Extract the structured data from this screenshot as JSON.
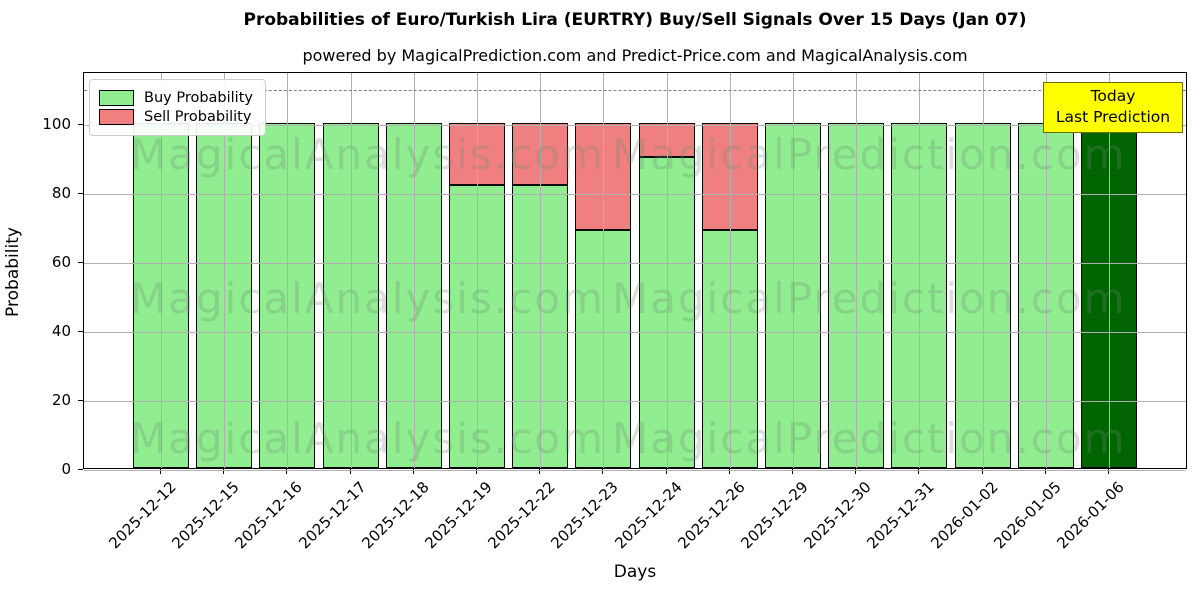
{
  "header": {
    "title": "Probabilities of Euro/Turkish Lira (EURTRY) Buy/Sell Signals Over 15 Days (Jan 07)",
    "subtitle": "powered by MagicalPrediction.com and Predict-Price.com and MagicalAnalysis.com"
  },
  "legend": {
    "items": [
      {
        "label": "Buy Probability",
        "color": "#90EE90"
      },
      {
        "label": "Sell Probability",
        "color": "#F08080"
      }
    ]
  },
  "annotation": {
    "line1": "Today",
    "line2": "Last Prediction",
    "bg_color": "#FFFF00"
  },
  "watermarks": {
    "left": "MagicalAnalysis.com",
    "right": "MagicalPrediction.com"
  },
  "colors": {
    "buy": "#90EE90",
    "sell": "#F08080",
    "today_bar": "#006400",
    "grid": "#b0b0b0",
    "dashed_line": "#808080",
    "bar_edge": "#0a0a0a",
    "annotation_bg": "#FFFF00"
  },
  "chart_data": {
    "type": "bar",
    "stacked": true,
    "title": "Probabilities of Euro/Turkish Lira (EURTRY) Buy/Sell Signals Over 15 Days (Jan 07)",
    "subtitle": "powered by MagicalPrediction.com and Predict-Price.com and MagicalAnalysis.com",
    "xlabel": "Days",
    "ylabel": "Probability",
    "categories": [
      "2025-12-12",
      "2025-12-15",
      "2025-12-16",
      "2025-12-17",
      "2025-12-18",
      "2025-12-19",
      "2025-12-22",
      "2025-12-23",
      "2025-12-24",
      "2025-12-26",
      "2025-12-29",
      "2025-12-30",
      "2025-12-31",
      "2026-01-02",
      "2026-01-05",
      "2026-01-06"
    ],
    "series": [
      {
        "name": "Buy Probability",
        "color": "#90EE90",
        "values": [
          100,
          100,
          100,
          100,
          100,
          82,
          82,
          69,
          90,
          69,
          100,
          100,
          100,
          100,
          100,
          100
        ]
      },
      {
        "name": "Sell Probability",
        "color": "#F08080",
        "values": [
          0,
          0,
          0,
          0,
          0,
          18,
          18,
          31,
          10,
          31,
          0,
          0,
          0,
          0,
          0,
          0
        ]
      }
    ],
    "today_index": 15,
    "today_color": "#006400",
    "yticks": [
      0,
      20,
      40,
      60,
      80,
      100
    ],
    "ylim": [
      0,
      115
    ],
    "reference_line": {
      "y": 110,
      "style": "dashed",
      "color": "#808080"
    },
    "grid": true,
    "legend_position": "upper-left"
  }
}
